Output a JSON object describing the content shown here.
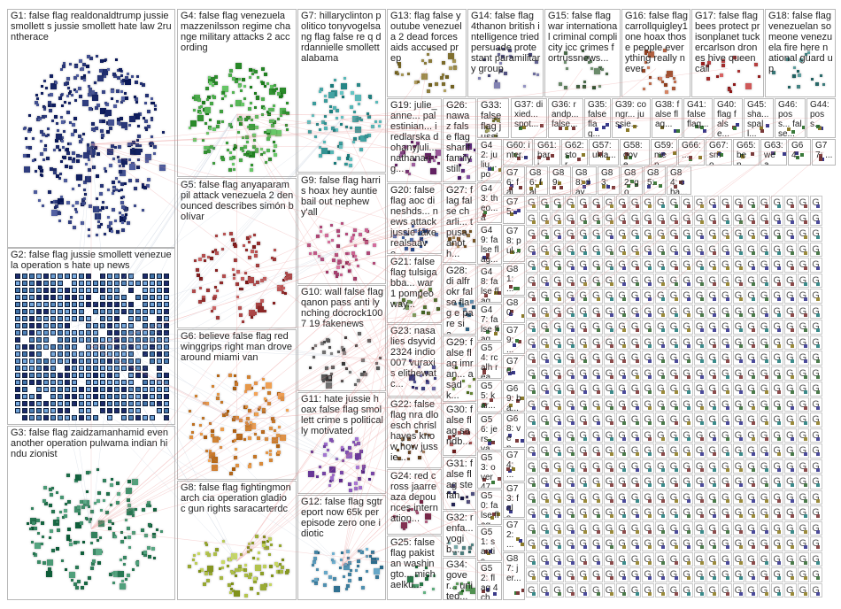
{
  "groups": [
    {
      "id": "G1",
      "label": "G1: false flag realdonaldtrump jussiesmollett s jussie smollett hate law 2runtherace",
      "color": "#1c2a6b",
      "nodes": 420
    },
    {
      "id": "G2",
      "label": "G2: false flag jussie smollett venezuela operation s hate up news",
      "color": "#5c8fc4",
      "nodes": 380
    },
    {
      "id": "G3",
      "label": "G3: false flag zaidzamanhamid even another operation pulwama indian hindu zionist",
      "color": "#1f6e4a",
      "nodes": 180
    },
    {
      "id": "G4",
      "label": "G4: false flag venezuela mazzenilsson regime change military attacks 2 according",
      "color": "#2f8f2f",
      "nodes": 190
    },
    {
      "id": "G5",
      "label": "G5: false flag anyaparampil attack venezuela 2 denounced describes simón bolívar",
      "color": "#8f2a2a",
      "nodes": 90
    },
    {
      "id": "G6",
      "label": "G6: believe false flag redwinggrips right man drove around miami van",
      "color": "#b86a1a",
      "nodes": 110
    },
    {
      "id": "G7",
      "label": "G7: hillaryclinton politico tonyvogelsang flag false re q drdannielle smollett alabama",
      "color": "#2a8a8a",
      "nodes": 80
    },
    {
      "id": "G8",
      "label": "G8: false flag fightingmonarch cia operation gladio c gun rights saracarterdc",
      "color": "#8fa02a",
      "nodes": 95
    },
    {
      "id": "G9",
      "label": "G9: false flag harris hoax hey auntie bail out nephew y'all",
      "color": "#a03a6a",
      "nodes": 55
    },
    {
      "id": "G10",
      "label": "G10: wall false flag qanon pass anti lynching docrock1007 19 fakenews",
      "color": "#4a4a4a",
      "nodes": 40
    },
    {
      "id": "G11",
      "label": "G11: hate jussie hoax false flag smollett crime s politically motivated",
      "color": "#6a3a9a",
      "nodes": 45
    },
    {
      "id": "G12",
      "label": "G12: false flag sgtreport now 65k per episode zero one idiotic",
      "color": "#3a7a9a",
      "nodes": 50
    },
    {
      "id": "G13",
      "label": "G13: flag false youtube venezuela 2 dead forces aids accused prep",
      "color": "#7a6a2a",
      "nodes": 30
    },
    {
      "id": "G14",
      "label": "G14: false flag 4thanon british intelligence tried persuade protestant paramilitary group",
      "color": "#5a5a8a",
      "nodes": 20
    },
    {
      "id": "G15",
      "label": "G15: false flag war international criminal complicity icc crimes fortrussnews...",
      "color": "#3a5a3a",
      "nodes": 20
    },
    {
      "id": "G16",
      "label": "G16: false flag carrollquigley1 one hoax those people everything really never",
      "color": "#9a4a2a",
      "nodes": 20
    },
    {
      "id": "G17",
      "label": "G17: false flag bees protect prisonplanet tuckercarlson drones hive queen call",
      "color": "#a02a2a",
      "nodes": 18
    },
    {
      "id": "G18",
      "label": "G18: false flag venezuelan someone venezuela fire here national guard up",
      "color": "#2a6a6a",
      "nodes": 16
    },
    {
      "id": "G19",
      "label": "G19: julie_anne... palestinian... iredlarska dohanyjuli... nathanang...",
      "color": "#6a2a6a",
      "nodes": 22
    },
    {
      "id": "G20",
      "label": "G20: false flag aoc dineshds... news attack jussie fake realsaave...",
      "color": "#2a4a8a",
      "nodes": 18
    },
    {
      "id": "G21",
      "label": "G21: false flag tulsigabba... war 1 pompeo way...",
      "color": "#4a6a2a",
      "nodes": 16
    },
    {
      "id": "G22",
      "label": "G22: false flag nra dloesch chrislhayes know how jussie...",
      "color": "#6a4a2a",
      "nodes": 14
    },
    {
      "id": "G23",
      "label": "G23: nasa lies dsyvid2324 indio007 vuraxis elithewatc...",
      "color": "#3a3a7a",
      "nodes": 14
    },
    {
      "id": "G24",
      "label": "G24: red cross jaarreaza denounces internation...",
      "color": "#7a2a4a",
      "nodes": 12
    },
    {
      "id": "G25",
      "label": "G25: false flag pakistan washingto... michaelku...",
      "color": "#2a7a4a",
      "nodes": 12
    },
    {
      "id": "G26",
      "label": "G26: nawaz false flag sharif family still",
      "color": "#5a2a7a",
      "nodes": 10
    },
    {
      "id": "G27",
      "label": "G27: flag false charli... tpusa anoth...",
      "color": "#7a5a2a",
      "nodes": 10
    },
    {
      "id": "G28",
      "label": "G28: di alfrokr false flag e pare sia...",
      "color": "#2a5a7a",
      "nodes": 10
    },
    {
      "id": "G29",
      "label": "G29: false flag imran... asadk...",
      "color": "#5a7a2a",
      "nodes": 9
    },
    {
      "id": "G30",
      "label": "G30: false flag sandb...",
      "color": "#7a2a2a",
      "nodes": 9
    },
    {
      "id": "G31",
      "label": "G31: false flag stefan...",
      "color": "#2a2a5a",
      "nodes": 8
    },
    {
      "id": "G32",
      "label": "G32: renfa... yogib...",
      "color": "#4a7a7a",
      "nodes": 8
    },
    {
      "id": "G33",
      "label": "G33: false flag jussi...",
      "color": "#6a6a2a",
      "nodes": 8
    },
    {
      "id": "G34",
      "label": "G34: gover... united...",
      "color": "#2a6a2a",
      "nodes": 8
    }
  ],
  "small_groups": [
    {
      "id": "G35",
      "label": "G35: false flag..."
    },
    {
      "id": "G36",
      "label": "G36: randp... false..."
    },
    {
      "id": "G37",
      "label": "G37: dixied... spot..."
    },
    {
      "id": "G38",
      "label": "G38: false flag..."
    },
    {
      "id": "G39",
      "label": "G39: congr... jussie..."
    },
    {
      "id": "G40",
      "label": "G40: flag false..."
    },
    {
      "id": "G41",
      "label": "G41: false flag..."
    },
    {
      "id": "G42",
      "label": "G42: juliu... pob..."
    },
    {
      "id": "G43",
      "label": "G43: theo... ad's..."
    },
    {
      "id": "G44",
      "label": "G44: poss..."
    },
    {
      "id": "G45",
      "label": "G45: sha... spall..."
    },
    {
      "id": "G46",
      "label": "G46: poss... false..."
    },
    {
      "id": "G47",
      "label": "G47: false flag..."
    },
    {
      "id": "G48",
      "label": "G48: false flag..."
    },
    {
      "id": "G49",
      "label": "G49: false flag..."
    },
    {
      "id": "G50",
      "label": "G50: false flag..."
    },
    {
      "id": "G51",
      "label": "G51: s antis..."
    },
    {
      "id": "G52",
      "label": "G52: flag 4ch..."
    },
    {
      "id": "G53",
      "label": "G53: over 47b..."
    },
    {
      "id": "G54",
      "label": "G54: rcalh real..."
    },
    {
      "id": "G55",
      "label": "G55: kar..."
    },
    {
      "id": "G56",
      "label": "G56: jers... van..."
    },
    {
      "id": "G57",
      "label": "G57: ukla..."
    },
    {
      "id": "G58",
      "label": "G58: gove..."
    },
    {
      "id": "G59",
      "label": "G59: men..."
    },
    {
      "id": "G60",
      "label": "G60: inter..."
    },
    {
      "id": "G61",
      "label": "G61: hari..."
    },
    {
      "id": "G62",
      "label": "G62: stor..."
    },
    {
      "id": "G63",
      "label": "G63: wea..."
    },
    {
      "id": "G64",
      "label": "G64: ..."
    },
    {
      "id": "G65",
      "label": "G65: ben..."
    },
    {
      "id": "G66",
      "label": "G66: ..."
    },
    {
      "id": "G67",
      "label": "G67: smo..."
    },
    {
      "id": "G68",
      "label": "G68: ven..."
    },
    {
      "id": "G69",
      "label": "G69: ba..."
    },
    {
      "id": "G70",
      "label": "G70: ..."
    },
    {
      "id": "G72",
      "label": "G72: ..."
    },
    {
      "id": "G73",
      "label": "G73: fals..."
    },
    {
      "id": "G74",
      "label": "G74: ..."
    },
    {
      "id": "G75",
      "label": "G75: ..."
    },
    {
      "id": "G76",
      "label": "G76: fals..."
    },
    {
      "id": "G77",
      "label": "G77: ..."
    },
    {
      "id": "G78",
      "label": "G78: pul..."
    },
    {
      "id": "G79",
      "label": "G79: ..."
    },
    {
      "id": "G80",
      "label": "G80: ..."
    },
    {
      "id": "G81",
      "label": "G81: ..."
    },
    {
      "id": "G82",
      "label": "G82: gov..."
    },
    {
      "id": "G83",
      "label": "G83: ..."
    },
    {
      "id": "G84",
      "label": "G84: cha..."
    },
    {
      "id": "G85",
      "label": "G85: ..."
    },
    {
      "id": "G86",
      "label": "G86: fals..."
    },
    {
      "id": "G87",
      "label": "G87: jer..."
    },
    {
      "id": "G88",
      "label": "G88: day..."
    },
    {
      "id": "G89",
      "label": "G89: ..."
    }
  ],
  "tiny_cluster_glyph": "G",
  "edge_color": "#e88a8a",
  "grid_edge_color": "#9fb0c8"
}
